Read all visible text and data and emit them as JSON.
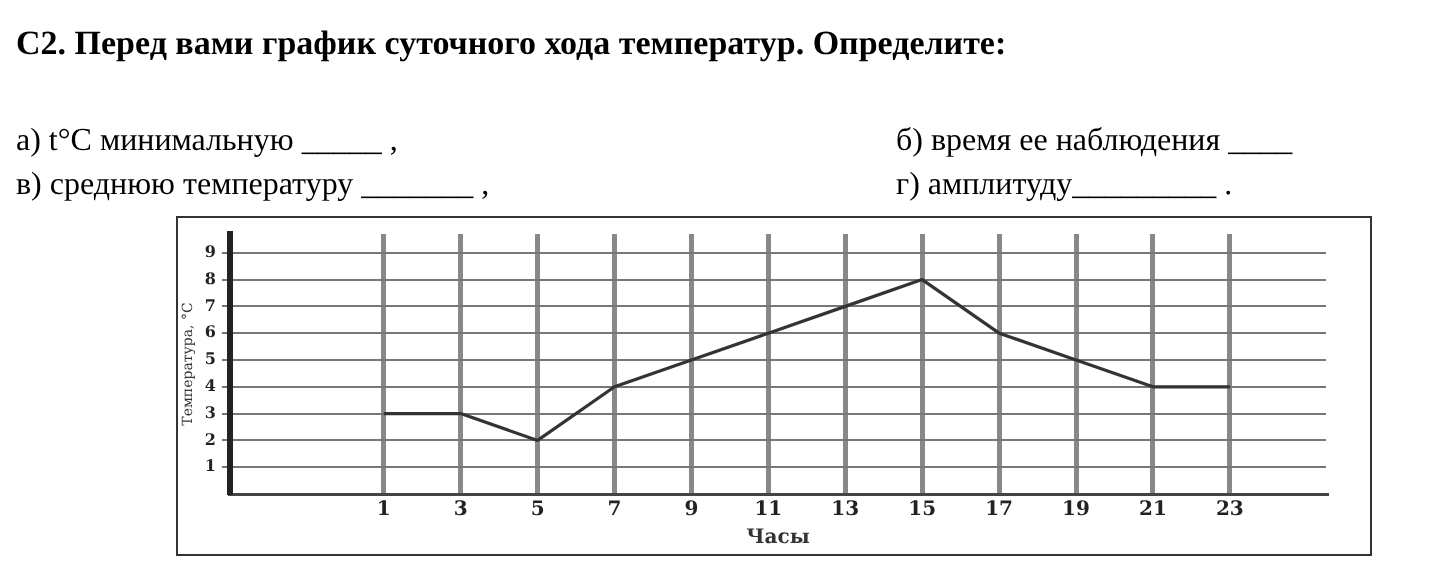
{
  "chart_data": {
    "type": "line",
    "title": "С2. Перед вами график суточного хода температур. Определите:",
    "annotations": [
      "а) t°С минимальную _____ ,",
      "б) время ее наблюдения ____",
      "в) среднюю температуру _______ ,",
      "г) амплитуду_________  ."
    ],
    "x": [
      1,
      3,
      5,
      7,
      9,
      11,
      13,
      15,
      17,
      19,
      21,
      23
    ],
    "series": [
      {
        "color": "#333333",
        "values": [
          3,
          3,
          2,
          4,
          5,
          6,
          7,
          8,
          6,
          5,
          4,
          4
        ]
      }
    ],
    "xlim": [
      -3,
      25.5
    ],
    "xticks": [
      1,
      3,
      5,
      7,
      9,
      11,
      13,
      15,
      17,
      19,
      21,
      23
    ],
    "ylim": [
      0,
      9.7
    ],
    "yticks": [
      1,
      2,
      3,
      4,
      5,
      6,
      7,
      8,
      9
    ],
    "xlabel": "Часы",
    "ylabel": "Температура, °С",
    "grid": true,
    "legend": false,
    "marker": "none",
    "line_style": "solid"
  }
}
